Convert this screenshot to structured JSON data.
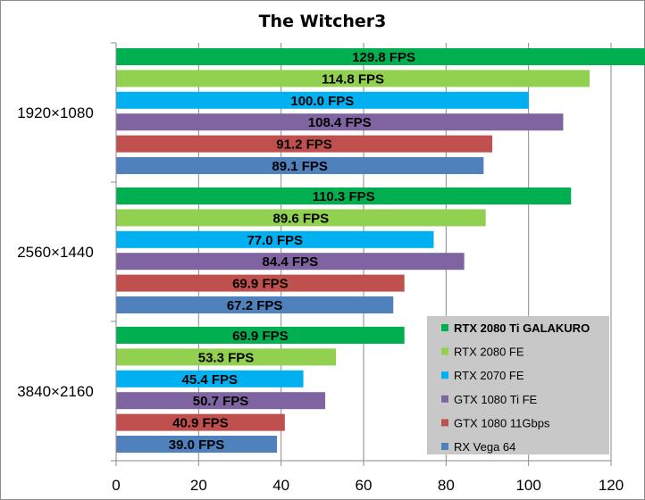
{
  "chart_data": {
    "type": "bar",
    "orientation": "horizontal",
    "title": "The Witcher3",
    "categories": [
      "1920×1080",
      "2560×1440",
      "3840×2160"
    ],
    "series": [
      {
        "name": "RTX 2080 Ti GALAKURO",
        "color": "#00b050",
        "values": [
          129.8,
          110.3,
          69.9
        ],
        "labels": [
          "129.8 FPS",
          "110.3 FPS",
          "69.9 FPS"
        ]
      },
      {
        "name": "RTX 2080 FE",
        "color": "#92d050",
        "values": [
          114.8,
          89.6,
          53.3
        ],
        "labels": [
          "114.8 FPS",
          "89.6 FPS",
          "53.3 FPS"
        ]
      },
      {
        "name": "RTX 2070 FE",
        "color": "#00b0f0",
        "values": [
          100.0,
          77.0,
          45.4
        ],
        "labels": [
          "100.0 FPS",
          "77.0 FPS",
          "45.4 FPS"
        ]
      },
      {
        "name": "GTX 1080 Ti FE",
        "color": "#8064a2",
        "values": [
          108.4,
          84.4,
          50.7
        ],
        "labels": [
          "108.4 FPS",
          "84.4 FPS",
          "50.7 FPS"
        ]
      },
      {
        "name": "GTX 1080 11Gbps",
        "color": "#c0504d",
        "values": [
          91.2,
          69.9,
          40.9
        ],
        "labels": [
          "91.2 FPS",
          "69.9 FPS",
          "40.9 FPS"
        ]
      },
      {
        "name": "RX Vega 64",
        "color": "#4f81bd",
        "values": [
          89.1,
          67.2,
          39.0
        ],
        "labels": [
          "89.1 FPS",
          "67.2 FPS",
          "39.0 FPS"
        ]
      }
    ],
    "xlim": [
      0,
      120
    ],
    "xticks": [
      0,
      20,
      40,
      60,
      80,
      100,
      120
    ],
    "xtick_labels": [
      "0",
      "20",
      "40",
      "60",
      "80",
      "100",
      "120"
    ],
    "grid": true,
    "legend_position": "bottom-right",
    "legend_background": "#c8c8c8"
  }
}
